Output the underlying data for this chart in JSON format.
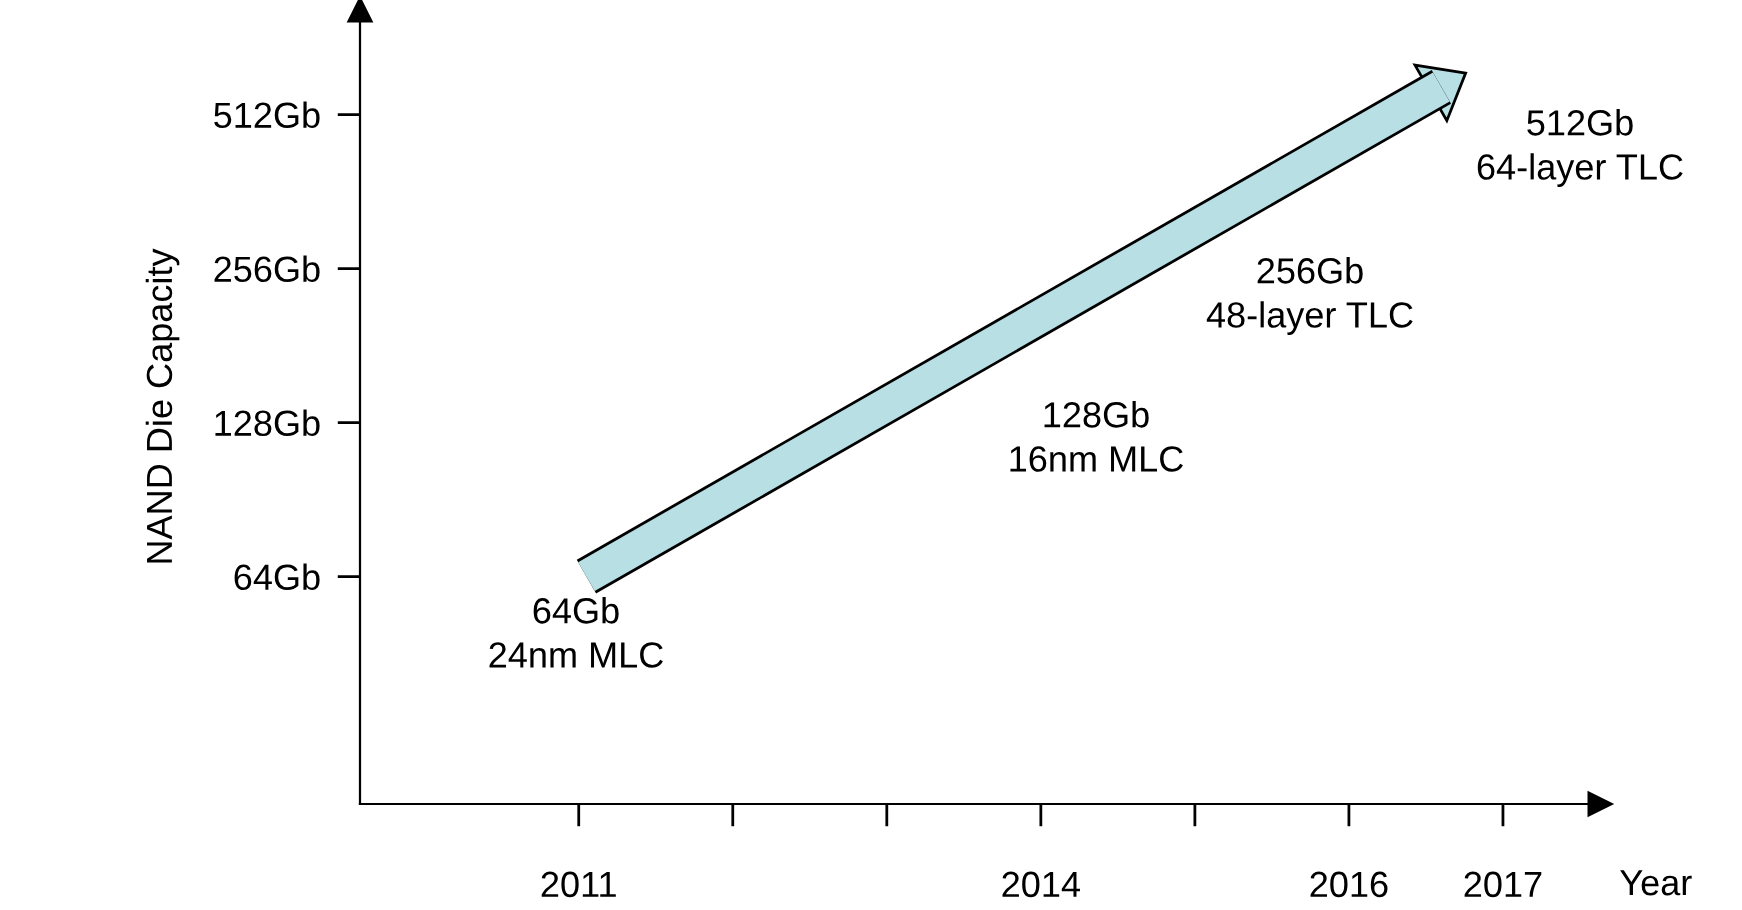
{
  "chart_data": {
    "type": "line",
    "xlabel": "Year",
    "ylabel": "NAND Die Capacity",
    "log": "y",
    "xlim": [
      2009.58,
      2017.63
    ],
    "ylim": [
      23,
      820
    ],
    "xticks": [
      2011,
      {
        "value": 2012,
        "label": null
      },
      {
        "value": 2013,
        "label": null
      },
      2014,
      {
        "value": 2015,
        "label": null
      },
      2016,
      2017
    ],
    "yticks": [
      {
        "value": 64,
        "label": "64Gb"
      },
      {
        "value": 128,
        "label": "128Gb"
      },
      {
        "value": 256,
        "label": "256Gb"
      },
      {
        "value": 512,
        "label": "512Gb"
      }
    ],
    "series": [
      {
        "color": "#b7dfe4",
        "x": [
          2011.05,
          2016.6
        ],
        "values": [
          64,
          580
        ]
      }
    ],
    "annotations": [
      "64Gb\n24nm MLC",
      "128Gb\n16nm MLC",
      "256Gb\n48-layer TLC",
      "512Gb\n64-layer TLC"
    ]
  }
}
